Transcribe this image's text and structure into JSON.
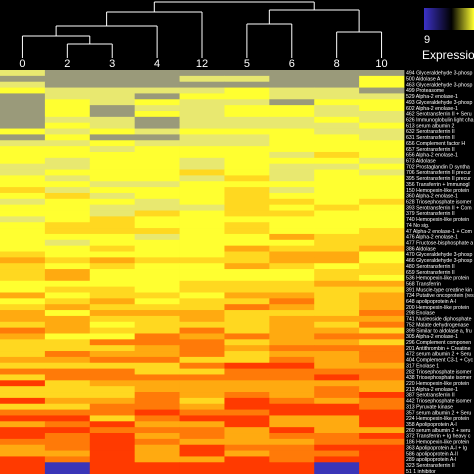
{
  "legend": {
    "title": "Expressio",
    "min_label": "9",
    "gradient_colors": [
      "#3c32c8",
      "#000000",
      "#ffff30"
    ]
  },
  "chart_data": {
    "type": "heatmap",
    "columns": [
      "0",
      "2",
      "3",
      "4",
      "12",
      "5",
      "6",
      "8",
      "10"
    ],
    "row_labels": [
      "494 Glyceraldehyde 3-phosp",
      "500 Aldolase A",
      "463 Glyceraldehyde 3-phosp",
      "499 Proteasome",
      "529 Alpha-2 enolase-1",
      "493 Glyceraldehyde 3-phosp",
      "602 Alpha-2 enolase-1",
      "462 Serotransferrin II + Seru",
      "626 Immunoglobulin light cha",
      "613 serum albumin 2",
      "632 Serotransferrin II",
      "631 Serotransferrin II",
      "656 Complement factor H",
      "657 Serotransferrin II",
      "656 Alpha-2 enolase-1",
      "673 Aldolase",
      "702 Prostaglandin D syntha",
      "706 Serotransferrin II precur",
      "395 Serotransferrin II precur",
      "356 Transferrin + Immunogl",
      "150 Hemopexin-like protein",
      "360 Alpha-2 enolase-1",
      "628 Triosephosphate isomer",
      "393 Serotransferrin II + Com",
      "379 Serotransferrin II",
      "740 Hemopexin-like protein",
      "74 No sig.",
      "47 Alpha-2 enolase-1 + Com",
      "476 Alpha-2 enolase-1",
      "477 Fructose-bisphosphate a",
      "386 Aldolase",
      "470 Glyceraldehyde 3-phosp",
      "466 Glyceraldehyde 3-phosp",
      "480 Serotransferrin II",
      "659 Serotransferrin II",
      "536 Hemopexin-like protein",
      "568 Transferrin",
      "391 Muscle-type creatine kin",
      "734 Putative oncoprotein (res",
      "648 apolipoprotein A-I",
      "200 Hemopexin-like protein",
      "298 Enolase",
      "741 Nucleoside diphosphate",
      "752 Malate dehydrogenase",
      "399 Similar to aldolase a, fru",
      "305 Alpha-2 enolase-1",
      "296 Complement componen",
      "201 Antithrombin + Creatine",
      "472 serum albumin 2 + Seru",
      "404 Complement C3-1 + Cyc",
      "317 Enolase 1",
      "282 Triosephosphate isomer",
      "438 Triosephosphate isomer",
      "220 Hemopexin-like protein",
      "213 Alpha-2 enolase-1",
      "387 Serotransferrin II",
      "442 Triosephosphate isomer",
      "313 Pyruvate kinase",
      "357 serum albumin 2 + Seru",
      "224 Hemopexin-like protein",
      "358 Apolipoprotein A-I",
      "260 serum albumin 2 + seru",
      "372 Transferrin + Ig heavy c",
      "186 Hemopexin-like protein",
      "363 Apolipoprotein A-I + Ig",
      "586 apolipoprotein A-II",
      "289 apolipoprotein A-I",
      "323 Serotransferrin II",
      "51 1 inhibitor"
    ]
  }
}
